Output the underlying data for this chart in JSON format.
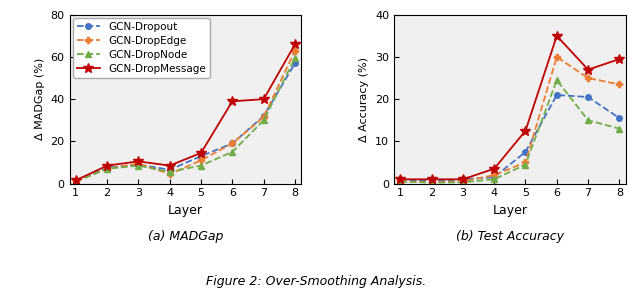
{
  "layers": [
    1,
    2,
    3,
    4,
    5,
    6,
    7,
    8
  ],
  "madgap": {
    "dropout": [
      1.0,
      7.5,
      9.0,
      6.5,
      13.0,
      19.0,
      32.0,
      57.0
    ],
    "dropedge": [
      1.0,
      7.0,
      9.5,
      4.5,
      11.0,
      19.0,
      31.5,
      63.0
    ],
    "dropnode": [
      1.0,
      7.0,
      8.5,
      5.5,
      8.5,
      15.0,
      30.0,
      59.5
    ],
    "dropmessage": [
      1.5,
      8.5,
      10.5,
      8.5,
      14.5,
      39.0,
      40.0,
      66.0
    ]
  },
  "accuracy": {
    "dropout": [
      1.0,
      0.5,
      1.0,
      1.5,
      7.5,
      21.0,
      20.5,
      15.5
    ],
    "dropedge": [
      0.5,
      0.3,
      0.5,
      2.0,
      5.0,
      30.0,
      25.0,
      23.5
    ],
    "dropnode": [
      0.5,
      0.2,
      0.3,
      1.0,
      4.5,
      24.5,
      15.0,
      13.0
    ],
    "dropmessage": [
      1.0,
      1.0,
      1.0,
      3.5,
      12.5,
      35.0,
      27.0,
      29.5
    ]
  },
  "colors": {
    "dropout": "#4472C4",
    "dropedge": "#ED7D31",
    "dropnode": "#70AD47",
    "dropmessage": "#C00000"
  },
  "markers": {
    "dropout": "o",
    "dropedge": "P",
    "dropnode": "^",
    "dropmessage": "*"
  },
  "linestyles": {
    "dropout": "--",
    "dropedge": "--",
    "dropnode": "--",
    "dropmessage": "-"
  },
  "markersizes": {
    "dropout": 4,
    "dropedge": 5,
    "dropnode": 5,
    "dropmessage": 7
  },
  "labels": {
    "dropout": "GCN-Dropout",
    "dropedge": "GCN-DropEdge",
    "dropnode": "GCN-DropNode",
    "dropmessage": "GCN-DropMessage"
  },
  "madgap_ylim": [
    0,
    80
  ],
  "accuracy_ylim": [
    0,
    40
  ],
  "madgap_yticks": [
    0,
    20,
    40,
    60,
    80
  ],
  "accuracy_yticks": [
    0,
    10,
    20,
    30,
    40
  ],
  "xlabel": "Layer",
  "ylabel_madgap": "Δ MADGap (%)",
  "ylabel_accuracy": "Δ Accuracy (%)",
  "caption_a": "(a) MADGap",
  "caption_b": "(b) Test Accuracy",
  "figure_caption": "Figure 2: Over-Smoothing Analysis.",
  "background_color": "#f0f0f0"
}
